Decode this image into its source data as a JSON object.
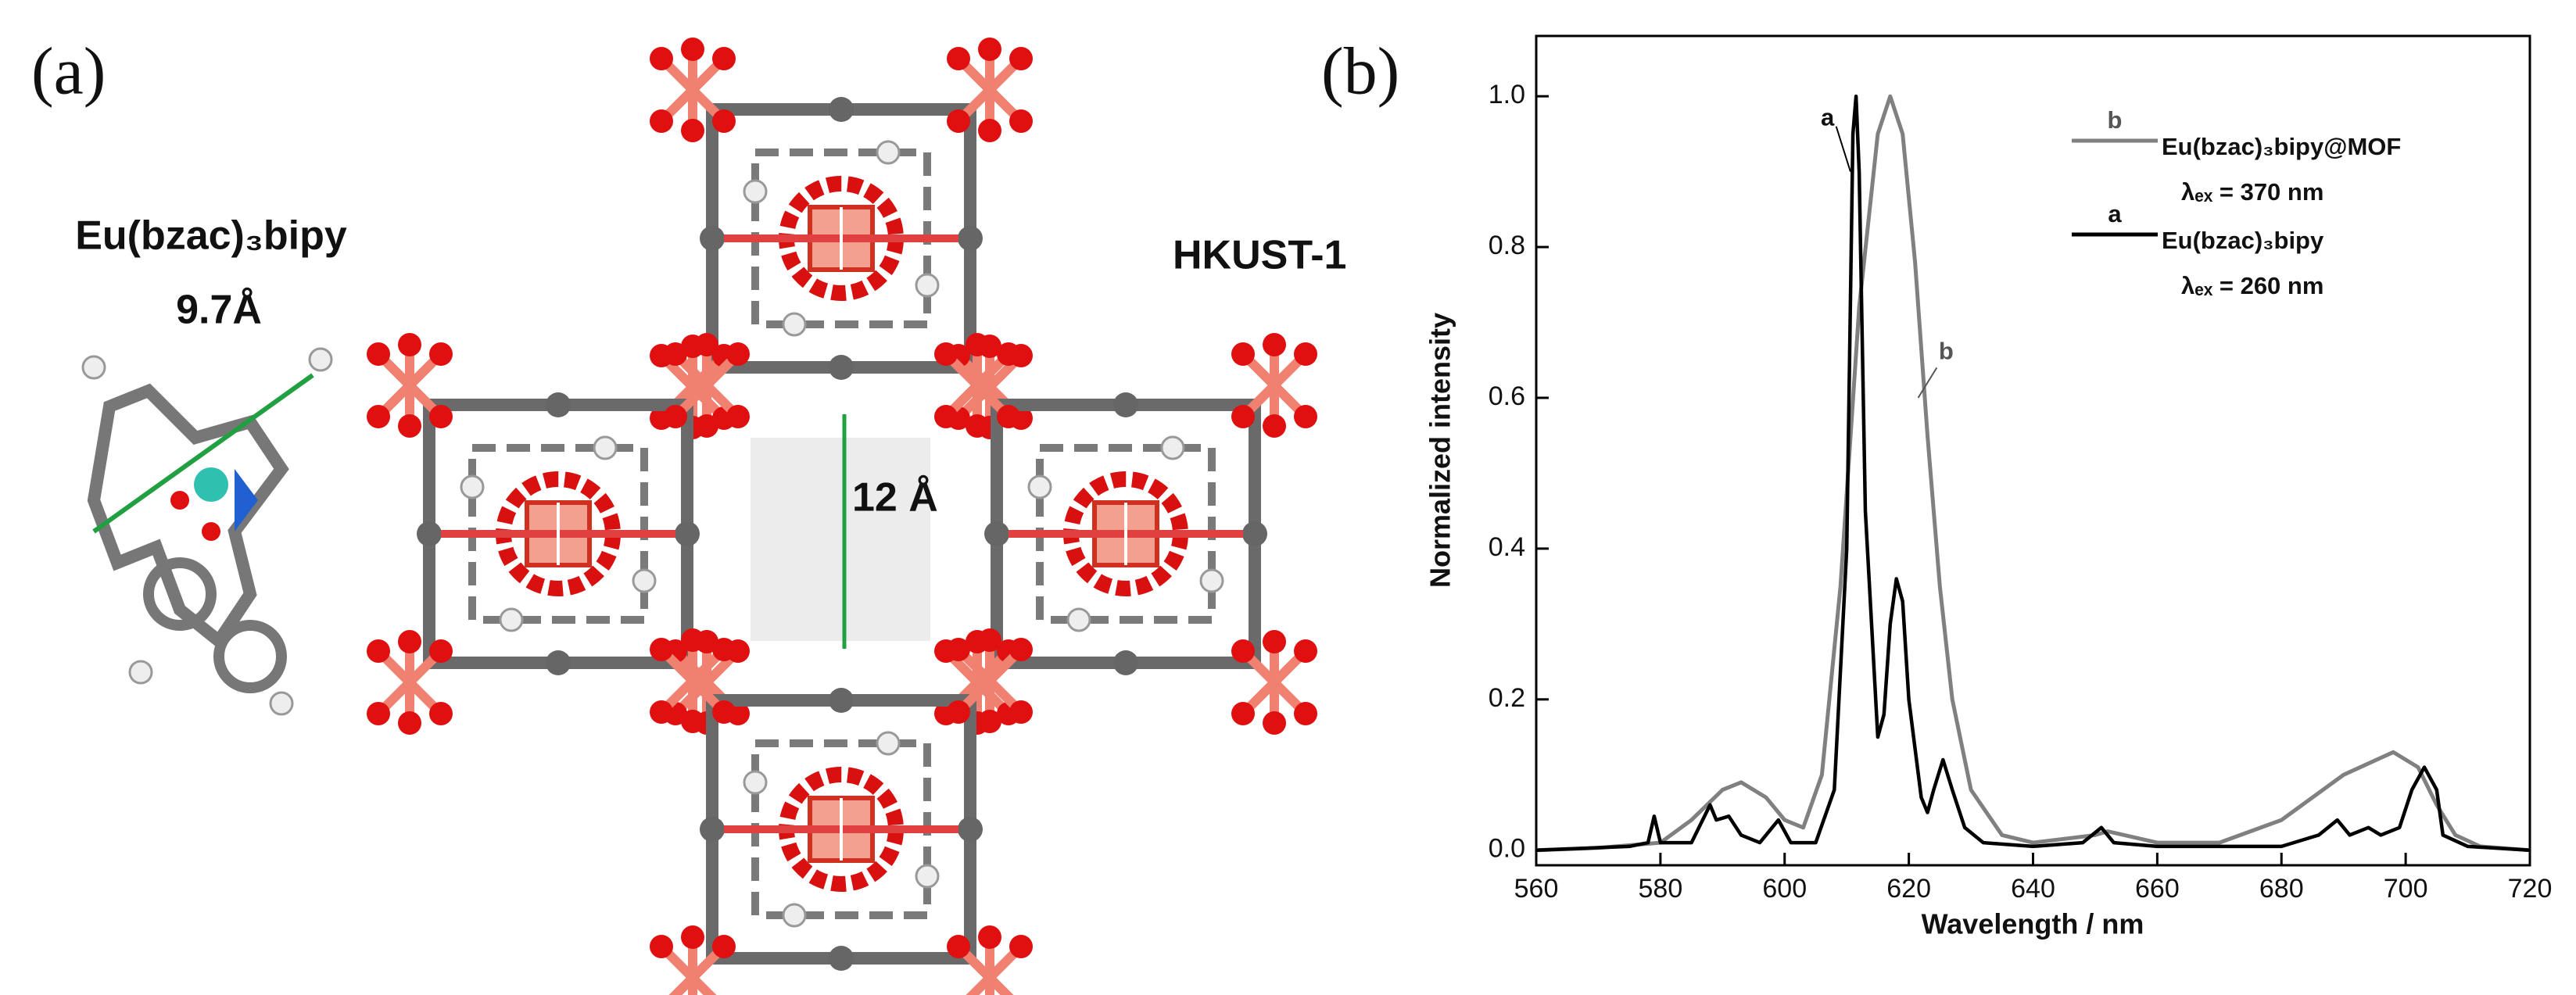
{
  "panel_a": {
    "label": "(a)",
    "molecule": "Eu(bzac)₃bipy",
    "molecule_size": "9.7Å",
    "framework": "HKUST-1",
    "pore_size": "12 Å"
  },
  "chart_data": {
    "type": "line",
    "panel_label": "(b)",
    "x_label": "Wavelength / nm",
    "y_label": "Normalized intensity",
    "xlim": [
      560,
      720
    ],
    "xticks": [
      560,
      580,
      600,
      620,
      640,
      660,
      680,
      700,
      720
    ],
    "ylim": [
      -0.02,
      1.08
    ],
    "yticks": [
      {
        "value": 0,
        "label": "0.0"
      },
      {
        "value": 0.2,
        "label": "0.2"
      },
      {
        "value": 0.4,
        "label": "0.4"
      },
      {
        "value": 0.6,
        "label": "0.6"
      },
      {
        "value": 0.8,
        "label": "0.8"
      },
      {
        "value": 1,
        "label": "1.0"
      }
    ],
    "series": [
      {
        "name": "Eu(bzac)₃bipy@MOF",
        "label": "b",
        "excitation": "λₑₓ = 370 nm",
        "color": "#808080",
        "x": [
          560,
          570,
          580,
          585,
          590,
          593,
          597,
          600,
          603,
          606,
          609,
          612,
          615,
          617,
          619,
          621,
          623,
          625,
          627,
          630,
          635,
          640,
          650,
          652,
          660,
          670,
          680,
          690,
          698,
          702,
          705,
          708,
          712,
          720
        ],
        "values": [
          0,
          0.003,
          0.01,
          0.04,
          0.08,
          0.09,
          0.07,
          0.04,
          0.03,
          0.1,
          0.35,
          0.72,
          0.95,
          1.0,
          0.95,
          0.78,
          0.55,
          0.35,
          0.2,
          0.08,
          0.02,
          0.01,
          0.02,
          0.025,
          0.01,
          0.01,
          0.04,
          0.1,
          0.13,
          0.11,
          0.06,
          0.02,
          0.005,
          0
        ]
      },
      {
        "name": "Eu(bzac)₃bipy",
        "label": "a",
        "excitation": "λₑₓ = 260 nm",
        "color": "#000000",
        "x": [
          560,
          575,
          578,
          579,
          580,
          585,
          588,
          589,
          591,
          593,
          596,
          599,
          601,
          605,
          608,
          610,
          611,
          611.5,
          612,
          613,
          615,
          616,
          617,
          618,
          619,
          620,
          622,
          623,
          624,
          625.5,
          627,
          629,
          632,
          640,
          648,
          651,
          653,
          660,
          680,
          686,
          689,
          691,
          694,
          696,
          699,
          701,
          703,
          705,
          706,
          710,
          720
        ],
        "values": [
          0,
          0.005,
          0.01,
          0.045,
          0.01,
          0.01,
          0.06,
          0.04,
          0.045,
          0.02,
          0.01,
          0.04,
          0.01,
          0.01,
          0.08,
          0.4,
          0.95,
          1.0,
          0.9,
          0.45,
          0.15,
          0.18,
          0.3,
          0.36,
          0.33,
          0.2,
          0.07,
          0.05,
          0.08,
          0.12,
          0.08,
          0.03,
          0.01,
          0.005,
          0.01,
          0.03,
          0.01,
          0.005,
          0.005,
          0.02,
          0.04,
          0.02,
          0.03,
          0.02,
          0.03,
          0.08,
          0.11,
          0.08,
          0.02,
          0.005,
          0
        ]
      }
    ]
  }
}
